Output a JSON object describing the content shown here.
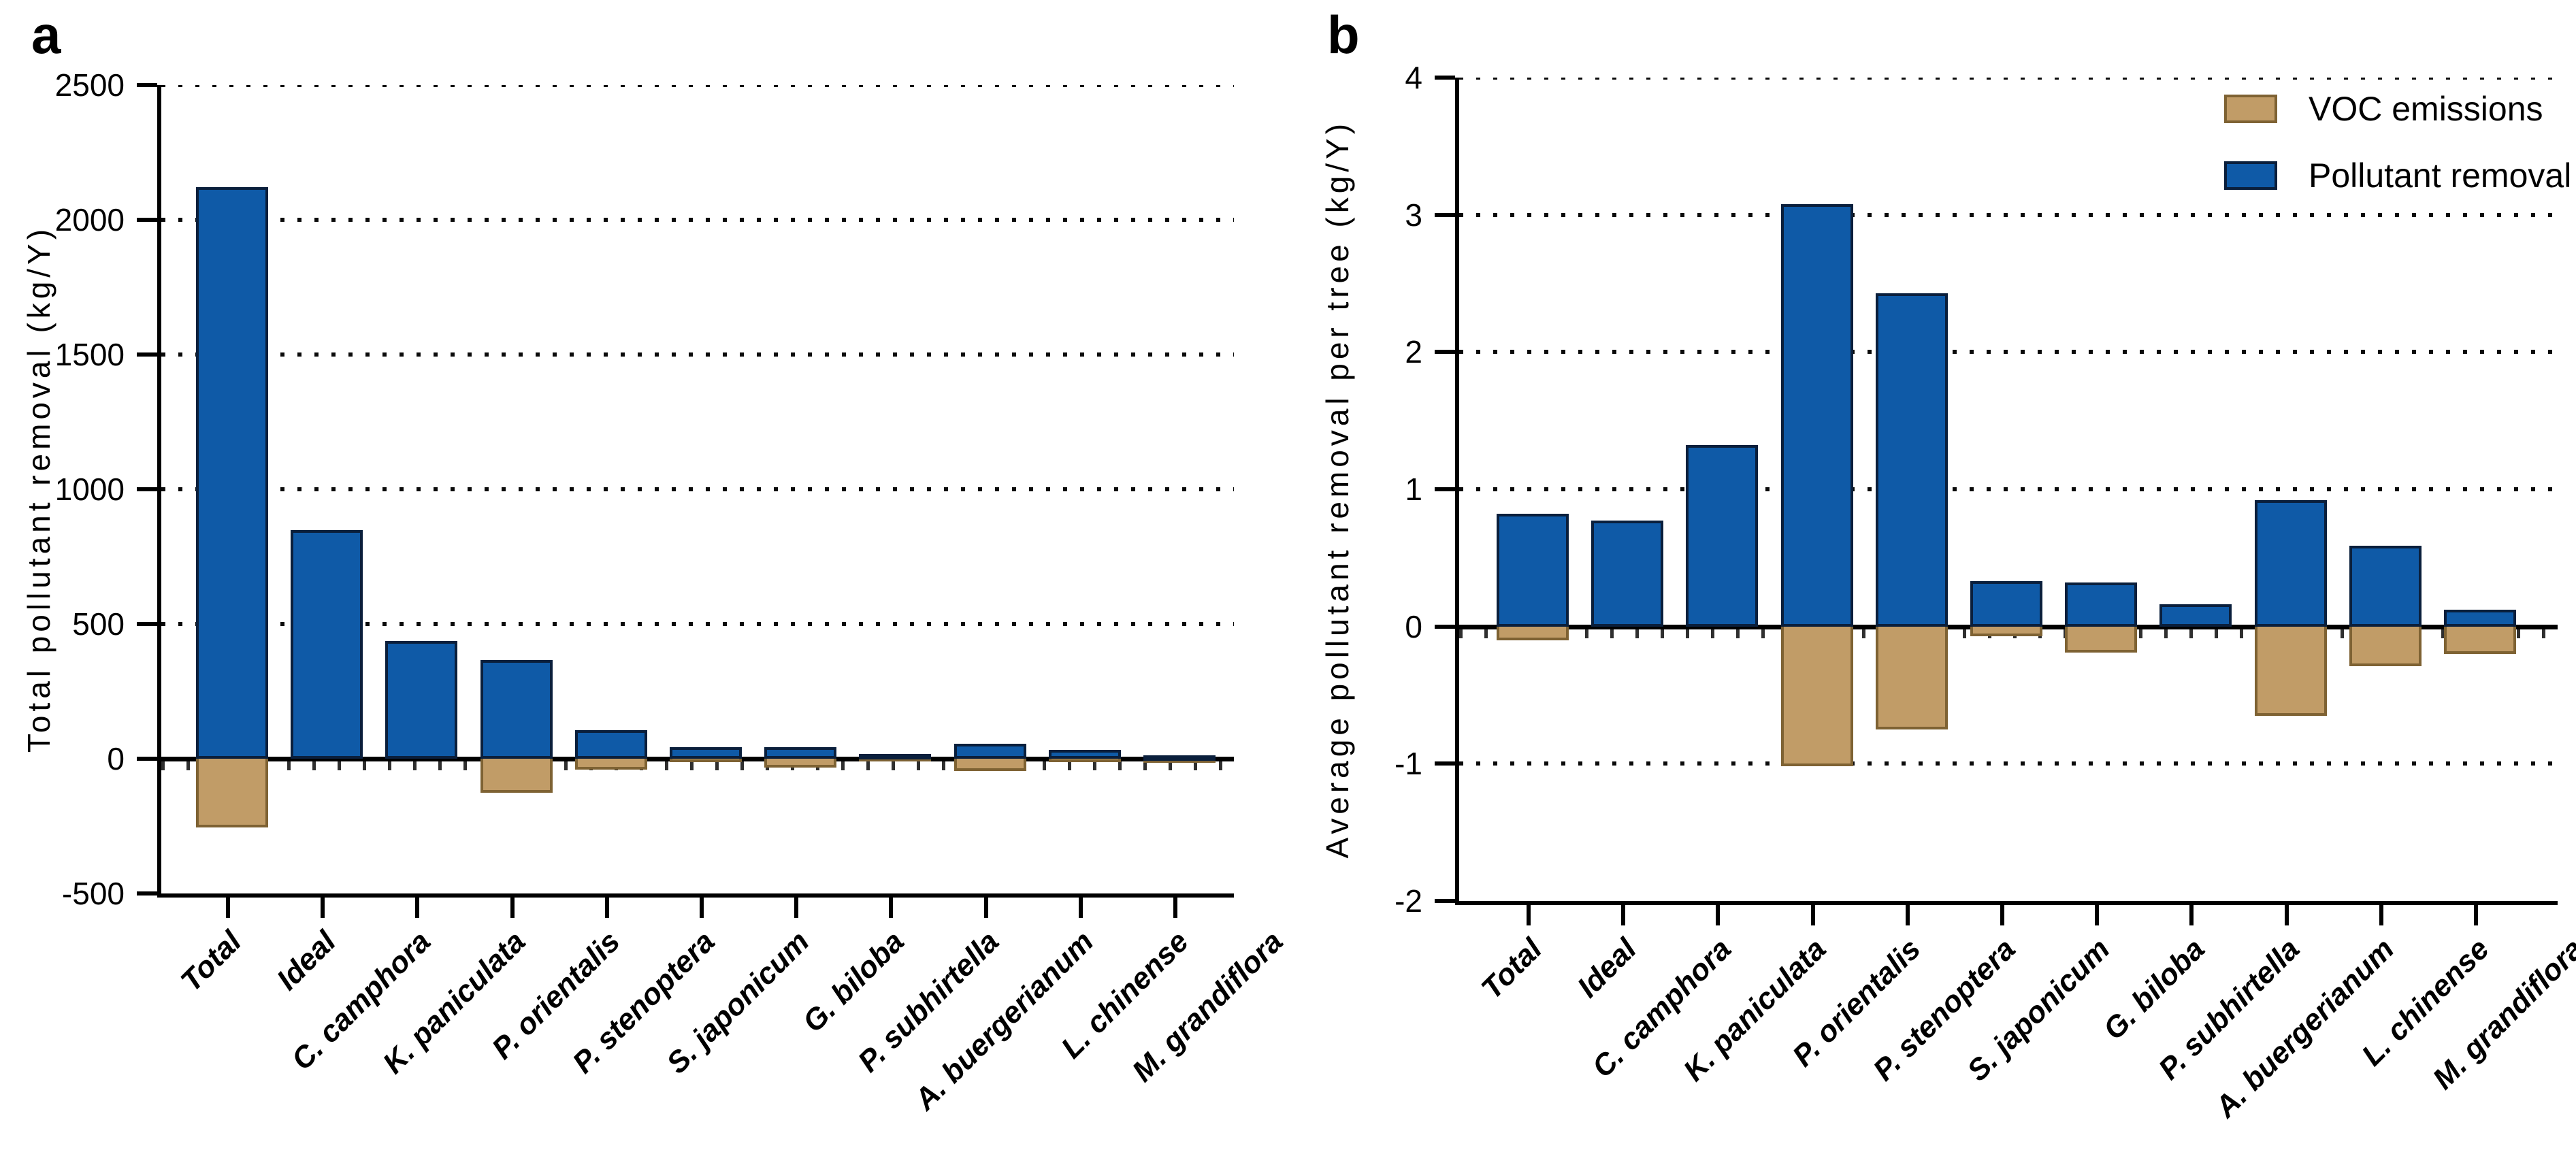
{
  "figure": {
    "panel_a_letter": "a",
    "panel_b_letter": "b"
  },
  "colors": {
    "removal_blue": "#0F5AA7",
    "removal_border": "#0A1F3C",
    "voc_tan": "#C19C67",
    "voc_border": "#7E6233",
    "axis_black": "#000000"
  },
  "legend": {
    "items": [
      {
        "label": "VOC emissions",
        "series": "voc"
      },
      {
        "label": "Pollutant removal",
        "series": "removal"
      }
    ]
  },
  "chart_data": [
    {
      "type": "bar",
      "panel": "a",
      "title": "",
      "xlabel": "",
      "ylabel": "Total pollutant removal (kg/Y)",
      "ylim": [
        -500,
        2500
      ],
      "yticks": [
        -500,
        0,
        500,
        1000,
        1500,
        2000,
        2500
      ],
      "dotted_gridlines": [
        500,
        1000,
        1500,
        2000,
        2500
      ],
      "grid": "dotted-horizontal",
      "legend_position": "none",
      "categories": [
        "Total",
        "Ideal",
        "C. camphora",
        "K. paniculata",
        "P. orientalis",
        "P. stenoptera",
        "S. japonicum",
        "G. biloba",
        "P. subhirtella",
        "A. buergerianum",
        "L. chinense",
        "M. grandiflora"
      ],
      "series": [
        {
          "name": "Pollutant removal",
          "values": [
            2120,
            848,
            438,
            365,
            105,
            42,
            42,
            18,
            56,
            32,
            12,
            0
          ]
        },
        {
          "name": "VOC emissions",
          "values": [
            -255,
            0,
            0,
            -125,
            -40,
            -12,
            -32,
            -5,
            -45,
            -12,
            -14,
            0
          ]
        }
      ],
      "note_12th_category_clipped": true
    },
    {
      "type": "bar",
      "panel": "b",
      "title": "",
      "xlabel": "",
      "ylabel": "Average pollutant removal per tree (kg/Y)",
      "ylim": [
        -2,
        4
      ],
      "yticks": [
        -2,
        -1,
        0,
        1,
        2,
        3,
        4
      ],
      "dotted_gridlines": [
        -1,
        1,
        2,
        3,
        4
      ],
      "grid": "dotted-horizontal",
      "legend_position": "upper-right",
      "categories": [
        "Total",
        "Ideal",
        "C. camphora",
        "K. paniculata",
        "P. orientalis",
        "P. stenoptera",
        "S. japonicum",
        "G. biloba",
        "P. subhirtella",
        "A. buergerianum",
        "L. chinense",
        "M. grandiflora"
      ],
      "series": [
        {
          "name": "Pollutant removal",
          "values": [
            0.82,
            0.77,
            1.32,
            3.08,
            2.43,
            0.33,
            0.32,
            0.16,
            0.92,
            0.59,
            0.12,
            0
          ]
        },
        {
          "name": "VOC emissions",
          "values": [
            -0.1,
            0,
            0,
            -1.02,
            -0.75,
            -0.07,
            -0.19,
            0,
            -0.65,
            -0.29,
            -0.2,
            0
          ]
        }
      ],
      "note_12th_category_clipped": true
    }
  ]
}
